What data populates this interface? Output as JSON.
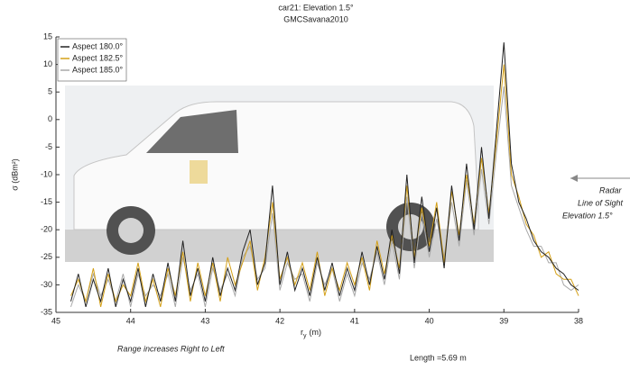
{
  "chart_data": {
    "type": "line",
    "title": "car21:  Elevation 1.5°",
    "subtitle": "GMCSavana2010",
    "x_label": "r",
    "x_label_sub": "y",
    "x_label_unit": "(m)",
    "y_label": "σ (dBm²)",
    "xlim": [
      45,
      38
    ],
    "xticks": [
      45,
      44,
      43,
      42,
      41,
      40,
      39,
      38
    ],
    "ylim": [
      -35,
      15
    ],
    "yticks": [
      -35,
      -30,
      -25,
      -20,
      -15,
      -10,
      -5,
      0,
      5,
      10,
      15
    ],
    "legend": "top-left",
    "x": [
      44.8,
      44.7,
      44.6,
      44.5,
      44.4,
      44.3,
      44.2,
      44.1,
      44.0,
      43.9,
      43.8,
      43.7,
      43.6,
      43.5,
      43.4,
      43.3,
      43.2,
      43.1,
      43.0,
      42.9,
      42.8,
      42.7,
      42.6,
      42.5,
      42.4,
      42.3,
      42.2,
      42.1,
      42.0,
      41.9,
      41.8,
      41.7,
      41.6,
      41.5,
      41.4,
      41.3,
      41.2,
      41.1,
      41.0,
      40.9,
      40.8,
      40.7,
      40.6,
      40.5,
      40.4,
      40.3,
      40.2,
      40.1,
      40.0,
      39.9,
      39.8,
      39.7,
      39.6,
      39.5,
      39.4,
      39.3,
      39.2,
      39.1,
      39.0,
      38.9,
      38.8,
      38.7,
      38.6,
      38.5,
      38.4,
      38.3,
      38.2,
      38.1,
      38.0
    ],
    "series": [
      {
        "name": "Aspect 180.0°",
        "color": "#222222",
        "values": [
          -33,
          -28,
          -34,
          -29,
          -33,
          -27,
          -34,
          -29,
          -33,
          -27,
          -34,
          -28,
          -33,
          -26,
          -33,
          -22,
          -32,
          -27,
          -33,
          -25,
          -32,
          -27,
          -31,
          -24,
          -20,
          -30,
          -26,
          -12,
          -30,
          -24,
          -31,
          -27,
          -32,
          -25,
          -31,
          -26,
          -32,
          -27,
          -31,
          -24,
          -30,
          -23,
          -29,
          -20,
          -28,
          -10,
          -26,
          -14,
          -24,
          -16,
          -27,
          -12,
          -22,
          -8,
          -20,
          -5,
          -18,
          -2,
          14,
          -8,
          -15,
          -18,
          -22,
          -24,
          -25,
          -27,
          -28,
          -30,
          -31
        ]
      },
      {
        "name": "Aspect 182.5°",
        "color": "#d4a017",
        "values": [
          -32,
          -29,
          -33,
          -27,
          -34,
          -28,
          -33,
          -30,
          -32,
          -26,
          -33,
          -29,
          -34,
          -27,
          -32,
          -24,
          -33,
          -26,
          -32,
          -26,
          -33,
          -25,
          -30,
          -26,
          -22,
          -31,
          -25,
          -15,
          -29,
          -25,
          -30,
          -26,
          -31,
          -24,
          -32,
          -27,
          -31,
          -26,
          -30,
          -25,
          -31,
          -22,
          -28,
          -21,
          -27,
          -12,
          -25,
          -16,
          -23,
          -15,
          -26,
          -13,
          -21,
          -10,
          -19,
          -7,
          -17,
          -4,
          10,
          -10,
          -14,
          -19,
          -21,
          -25,
          -24,
          -28,
          -29,
          -29,
          -32
        ]
      },
      {
        "name": "Aspect 185.0°",
        "color": "#a8a8a8",
        "values": [
          -34,
          -30,
          -33,
          -28,
          -32,
          -29,
          -33,
          -28,
          -34,
          -28,
          -32,
          -30,
          -32,
          -28,
          -34,
          -25,
          -31,
          -28,
          -34,
          -27,
          -31,
          -28,
          -32,
          -25,
          -23,
          -29,
          -27,
          -17,
          -31,
          -26,
          -29,
          -28,
          -33,
          -26,
          -30,
          -27,
          -33,
          -28,
          -32,
          -26,
          -29,
          -24,
          -30,
          -22,
          -29,
          -14,
          -27,
          -17,
          -25,
          -18,
          -25,
          -15,
          -23,
          -11,
          -21,
          -9,
          -19,
          -6,
          6,
          -12,
          -16,
          -20,
          -23,
          -23,
          -26,
          -26,
          -30,
          -31,
          -30
        ]
      }
    ],
    "annotations": [
      "Range increases Right to Left",
      "Length =5.69 m"
    ],
    "radar_note": [
      "Radar",
      "Line of Sight",
      "Elevation 1.5°"
    ]
  }
}
